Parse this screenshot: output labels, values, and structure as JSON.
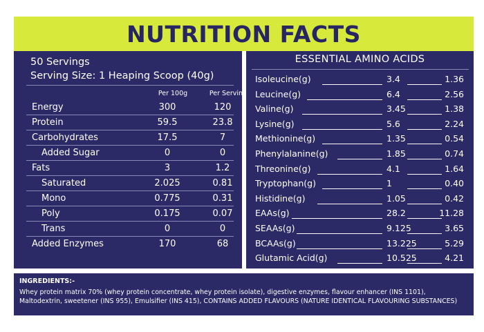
{
  "header": {
    "title": "NUTRITION FACTS"
  },
  "nutrition": {
    "servings": "50 Servings",
    "serving_size": "Serving Size: 1 Heaping Scoop (40g)",
    "col_per100": "Per 100g",
    "col_serving": "Per Serving",
    "rows": [
      {
        "label": "Energy",
        "per100": "300",
        "serving": "120"
      },
      {
        "label": "Protein",
        "per100": "59.5",
        "serving": "23.8"
      },
      {
        "label": "Carbohydrates",
        "per100": "17.5",
        "serving": "7"
      },
      {
        "label": "Added Sugar",
        "per100": "0",
        "serving": "0"
      },
      {
        "label": "Fats",
        "per100": "3",
        "serving": "1.2"
      },
      {
        "label": "Saturated",
        "per100": "2.025",
        "serving": "0.81"
      },
      {
        "label": "Mono",
        "per100": "0.775",
        "serving": "0.31"
      },
      {
        "label": "Poly",
        "per100": "0.175",
        "serving": "0.07"
      },
      {
        "label": "Trans",
        "per100": "0",
        "serving": "0"
      },
      {
        "label": "Added Enzymes",
        "per100": "170",
        "serving": "68"
      }
    ]
  },
  "amino": {
    "title": "ESSENTIAL AMINO ACIDS",
    "rows": [
      {
        "name": "Isoleucine(g)",
        "v1": "3.4",
        "v2": "1.36"
      },
      {
        "name": "Leucine(g)",
        "v1": "6.4",
        "v2": "2.56"
      },
      {
        "name": "Valine(g)",
        "v1": "3.45",
        "v2": "1.38"
      },
      {
        "name": "Lysine(g)",
        "v1": "5.6",
        "v2": "2.24"
      },
      {
        "name": "Methionine(g)",
        "v1": "1.35",
        "v2": "0.54"
      },
      {
        "name": "Phenylalanine(g)",
        "v1": "1.85",
        "v2": "0.74"
      },
      {
        "name": "Threonine(g)",
        "v1": "4.1",
        "v2": "1.64"
      },
      {
        "name": "Tryptophan(g)",
        "v1": "1",
        "v2": "0.40"
      },
      {
        "name": "Histidine(g)",
        "v1": "1.05",
        "v2": "0.42"
      },
      {
        "name": "EAAs(g)",
        "v1": "28.2",
        "v2": "11.28"
      },
      {
        "name": "SEAAs(g)",
        "v1": "9.125",
        "v2": "3.65"
      },
      {
        "name": "BCAAs(g)",
        "v1": "13.225",
        "v2": "5.29"
      },
      {
        "name": "Glutamic Acid(g)",
        "v1": "10.525",
        "v2": "4.21"
      }
    ]
  },
  "ingredients": {
    "title": "INGREDIENTS:-",
    "text": "Whey protein matrix 70% (whey protein concentrate, whey protein isolate), digestive enzymes, flavour enhancer (INS 1101), Maltodextrin, sweetener (INS 955), Emulsifier (INS 415), CONTAINS ADDED FLAVOURS (NATURE IDENTICAL  FLAVOURING SUBSTANCES)"
  }
}
